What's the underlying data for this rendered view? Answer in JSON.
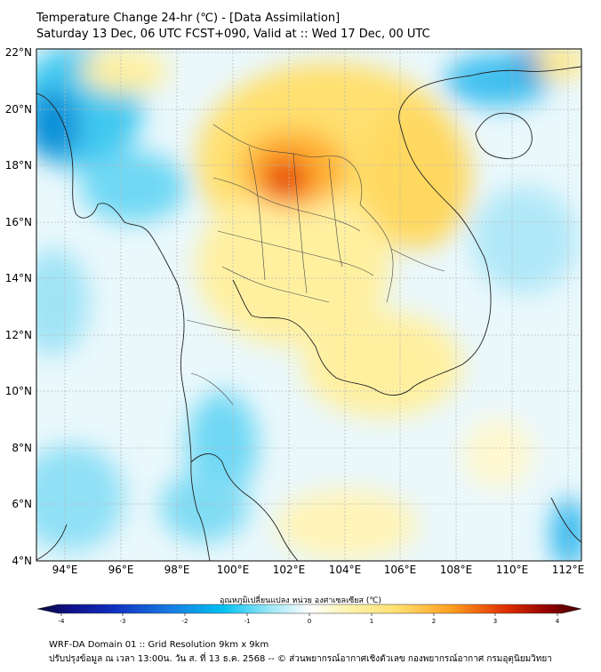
{
  "header": {
    "title": "Temperature Change 24-hr (℃) - [Data Assimilation]",
    "subtitle": "Saturday 13 Dec, 06 UTC FCST+090, Valid at :: Wed 17 Dec, 00 UTC"
  },
  "map": {
    "lat_labels": [
      "22°N",
      "20°N",
      "18°N",
      "16°N",
      "14°N",
      "12°N",
      "10°N",
      "8°N",
      "6°N",
      "4°N"
    ],
    "lon_labels": [
      "94°E",
      "96°E",
      "98°E",
      "100°E",
      "102°E",
      "104°E",
      "106°E",
      "108°E",
      "110°E",
      "112°E"
    ],
    "lat_range": [
      4,
      22
    ],
    "lon_range": [
      93,
      112.5
    ],
    "grid": true
  },
  "colorbar": {
    "label": "อุณหภูมิเปลี่ยนแปลง หน่วย องศาเซลเซียส (℃)",
    "ticks": [
      "-4",
      "-3",
      "-2",
      "-1",
      "0",
      "1",
      "2",
      "3",
      "4"
    ],
    "range": [
      -4,
      4
    ],
    "colors": {
      "cold": "#08083a",
      "cool": "#00c0f0",
      "neutral": "#ffffff",
      "warm": "#ffe070",
      "hot": "#e03000",
      "extreme": "#400000"
    }
  },
  "footer": {
    "line1": "WRF-DA Domain 01 :: Grid Resolution 9km x 9km",
    "line2": "ปรับปรุงข้อมูล ณ เวลา 13:00น. วัน ส. ที่ 13 ธ.ค. 2568 -- © ส่วนพยากรณ์อากาศเชิงตัวเลข กองพยากรณ์อากาศ กรมอุตุนิยมวิทยา"
  }
}
